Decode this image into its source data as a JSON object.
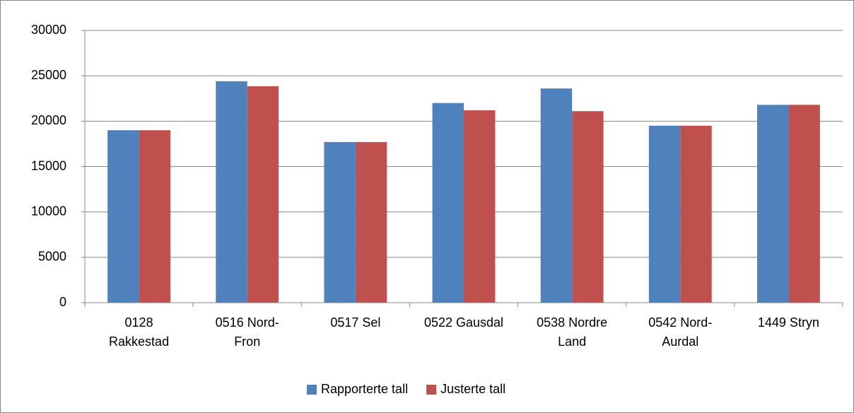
{
  "chart_data": {
    "type": "bar",
    "categories": [
      "0128 Rakkestad",
      "0516 Nord-Fron",
      "0517 Sel",
      "0522 Gausdal",
      "0538 Nordre Land",
      "0542 Nord-Aurdal",
      "1449 Stryn"
    ],
    "series": [
      {
        "name": "Rapporterte tall",
        "color": "#4f81bd",
        "values": [
          19000,
          24400,
          17700,
          22000,
          23600,
          19500,
          21800
        ]
      },
      {
        "name": "Justerte tall",
        "color": "#c0504d",
        "values": [
          19000,
          23850,
          17700,
          21200,
          21100,
          19500,
          21800
        ]
      }
    ],
    "ylim": [
      0,
      30000
    ],
    "yticks": [
      0,
      5000,
      10000,
      15000,
      20000,
      25000,
      30000
    ],
    "grid": true,
    "legend": "bottom"
  }
}
